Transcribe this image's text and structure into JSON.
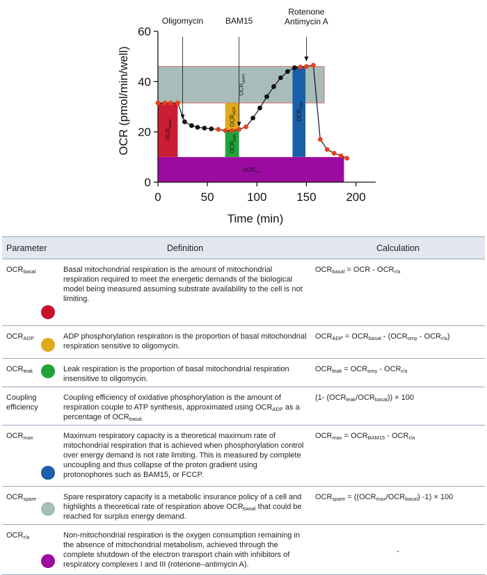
{
  "chart_data": {
    "type": "line",
    "ylabel": "OCR (pmol/min/well)",
    "xlabel": "Time (min)",
    "xlim": [
      0,
      220
    ],
    "ylim": [
      0,
      60
    ],
    "xticks": [
      "0",
      "50",
      "100",
      "150",
      "200"
    ],
    "yticks": [
      "0",
      "20",
      "40",
      "60"
    ],
    "series": [
      {
        "name": "OCR",
        "x": [
          0,
          7,
          13,
          20,
          27,
          34,
          40,
          47,
          54,
          61,
          68,
          75,
          82,
          89,
          96,
          103,
          110,
          117,
          124,
          131,
          138,
          144,
          150,
          157,
          164,
          171,
          178,
          185,
          191
        ],
        "y": [
          31.5,
          31.5,
          31.5,
          31.5,
          24,
          22.5,
          21.8,
          21.5,
          21.2,
          21,
          20.5,
          20.5,
          21,
          22,
          25.5,
          29.5,
          34,
          38,
          41.5,
          44,
          45.5,
          45.8,
          46,
          46.5,
          17,
          13,
          11.5,
          10.5,
          9.5
        ]
      }
    ],
    "red_points": [
      0,
      1,
      2,
      3,
      9,
      10,
      11,
      12,
      13,
      21,
      22,
      23,
      24,
      25,
      26,
      27,
      28
    ],
    "injections": [
      {
        "label": "Oligomycin",
        "x": 25
      },
      {
        "label": "BAM15",
        "x": 82
      },
      {
        "label": "Rotenone\nAntimycin A",
        "x": 150
      }
    ],
    "regions": [
      {
        "name": "basal",
        "label_main": "OCR",
        "label_sub": "basal",
        "x0": 0,
        "x1": 20,
        "y0": 10,
        "y1": 31.5,
        "color": "#cc1d35"
      },
      {
        "name": "adp",
        "label_main": "OCR",
        "label_sub": "ADP",
        "x0": 68,
        "x1": 82,
        "y0": 20.5,
        "y1": 31.5,
        "color": "#e0a81b"
      },
      {
        "name": "leak",
        "label_main": "OCR",
        "label_sub": "leak",
        "x0": 68,
        "x1": 82,
        "y0": 10,
        "y1": 20.5,
        "color": "#21a23b"
      },
      {
        "name": "max",
        "label_main": "OCR",
        "label_sub": "max",
        "x0": 136,
        "x1": 149,
        "y0": 10,
        "y1": 46,
        "color": "#1a5fa8"
      },
      {
        "name": "spare",
        "label_main": "OCR",
        "label_sub": "spare",
        "x0": 0,
        "x1": 168,
        "y0": 31.5,
        "y1": 46,
        "color": "#a8bcb9"
      },
      {
        "name": "ra",
        "label_main": "OCR",
        "label_sub": "r/a",
        "x0": 0,
        "x1": 188,
        "y0": 0,
        "y1": 10,
        "color": "#9b0b9f"
      }
    ]
  },
  "table": {
    "headers": [
      "Parameter",
      "Definition",
      "Calculation"
    ],
    "rows": [
      {
        "param": "OCR",
        "param_sub": "basal",
        "dot": "#c8102e",
        "definition": "Basal mitochondrial respiration is the amount of mitochondrial respiration required to meet the energetic demands of the biological model being measured assuming substrate availability to the cell is not limiting.",
        "calc_html": "OCR<sub>basal</sub> = OCR - OCR<sub>r/a</sub>"
      },
      {
        "param": "OCR",
        "param_sub": "ADP",
        "dot": "#e0a81b",
        "definition": "ADP phosphorylation respiration is the proportion of basal mitochondrial respiration sensitive to oligomycin.",
        "calc_html": "OCR<sub>ADP</sub> = OCR<sub>basal</sub> - (OCR<sub>omy</sub> - OCR<sub>r/a</sub>)"
      },
      {
        "param": "OCR",
        "param_sub": "leak",
        "dot": "#21a23b",
        "definition": "Leak respiration is the proportion of basal mitochondrial respiration insensitive to oligomycin.",
        "calc_html": "OCR<sub>leak</sub> = OCR<sub>omy</sub> - OCR<sub>r/a</sub>"
      },
      {
        "param": "Coupling efficiency",
        "param_sub": "",
        "dot": "",
        "definition_html": "Coupling efficiency of oxidative phosphorylation is the amount of respiration couple to ATP synthesis, approximated using OCR<sub>ADP</sub> as a percentage of OCR<sub>basal.</sub>",
        "calc_html": "(1- (OCR<sub>leak</sub>/OCR<sub>basal</sub>)) × 100"
      },
      {
        "param": "OCR",
        "param_sub": "max",
        "dot": "#1a5fa8",
        "definition": "Maximum respiratory capacity is a theoretical maximum rate of mitochondrial respiration that is achieved when phosphorylation control over energy demand is not rate limiting. This is measured by complete uncoupling and thus collapse of the proton gradient using protonophores such as BAM15, or FCCP.",
        "calc_html": "OCR<sub>max</sub> = OCR<sub>BAM15</sub> - OCR<sub>r/a</sub>"
      },
      {
        "param": "OCR",
        "param_sub": "spare",
        "dot": "#a8bcb9",
        "definition_html": "Spare respiratory capacity is a metabolic insurance policy of a cell and highlights a theoretical rate of respiration above OCR<sub>basal</sub> that could be reached for surplus energy demand.",
        "calc_html": "OCR<sub>spare</sub> = ((OCR<sub>max</sub>/OCR<sub>basal</sub>) -1) × 100"
      },
      {
        "param": "OCR",
        "param_sub": "r/a",
        "dot": "#9b0b9f",
        "definition": "Non-mitochondrial respiration is the oxygen consumption remaining in the absence of mitochondrial metabolism, achieved through the complete shutdown of the electron transport chain with inhibitors of respiratory complexes I and III (rotenone–antimycin A).",
        "calc_html": "-"
      }
    ]
  }
}
